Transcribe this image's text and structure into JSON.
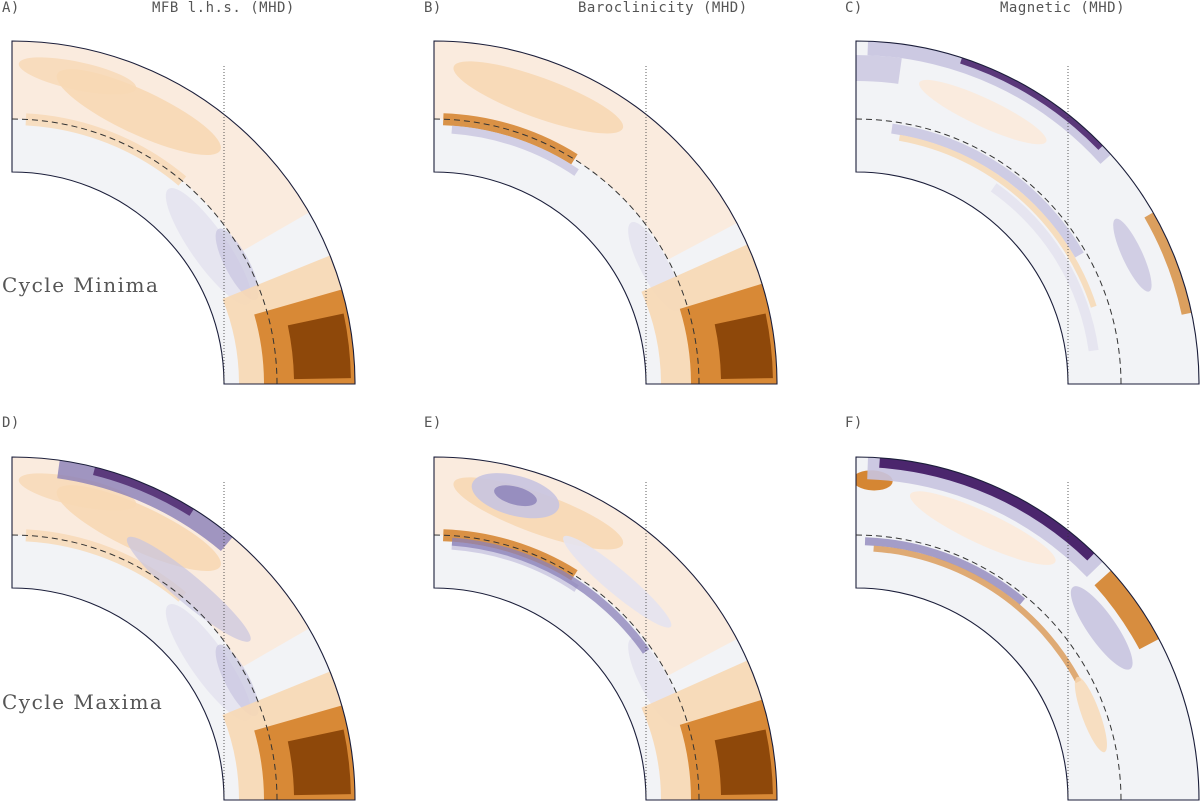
{
  "figure": {
    "column_titles": [
      "MFB l.h.s. (MHD)",
      "Baroclinicity (MHD)",
      "Magnetic (MHD)"
    ],
    "row_labels": [
      "Cycle Minima",
      "Cycle Maxima"
    ],
    "panels": [
      {
        "label": "A)",
        "variant": "mfb"
      },
      {
        "label": "B)",
        "variant": "baro"
      },
      {
        "label": "C)",
        "variant": "mag_min"
      },
      {
        "label": "D)",
        "variant": "mfb_max"
      },
      {
        "label": "E)",
        "variant": "baro_max"
      },
      {
        "label": "F)",
        "variant": "mag_max"
      }
    ]
  },
  "colors": {
    "orange_dark": "#8a4408",
    "orange_mid": "#d27a1e",
    "orange_light": "#f7d8b4",
    "orange_pale": "#fbeadb",
    "neutral": "#f2f3f6",
    "purple_pale": "#e4e3f0",
    "purple_light": "#c8c4e0",
    "purple_mid": "#8a80b8",
    "purple_dark": "#3d1460"
  }
}
